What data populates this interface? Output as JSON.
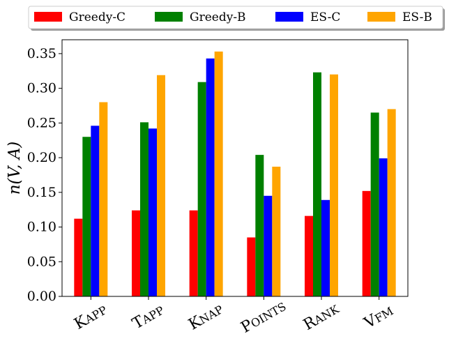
{
  "chart_data": {
    "type": "bar",
    "title": "",
    "xlabel": "",
    "ylabel": "n(V, A)",
    "categories": [
      "KAPP",
      "TAPP",
      "KNAP",
      "POINTS",
      "RANK",
      "VFM"
    ],
    "series": [
      {
        "name": "Greedy-C",
        "color": "#ff0000",
        "values": [
          0.112,
          0.124,
          0.124,
          0.085,
          0.116,
          0.152
        ]
      },
      {
        "name": "Greedy-B",
        "color": "#008000",
        "values": [
          0.23,
          0.251,
          0.309,
          0.204,
          0.323,
          0.265
        ]
      },
      {
        "name": "ES-C",
        "color": "#0000ff",
        "values": [
          0.246,
          0.242,
          0.343,
          0.145,
          0.139,
          0.199
        ]
      },
      {
        "name": "ES-B",
        "color": "#ffa500",
        "values": [
          0.28,
          0.319,
          0.353,
          0.187,
          0.32,
          0.27
        ]
      }
    ],
    "ylim": [
      0,
      0.37
    ],
    "yticks": [
      "0.00",
      "0.05",
      "0.10",
      "0.15",
      "0.20",
      "0.25",
      "0.30",
      "0.35"
    ],
    "legend_position": "top",
    "grid": false
  }
}
